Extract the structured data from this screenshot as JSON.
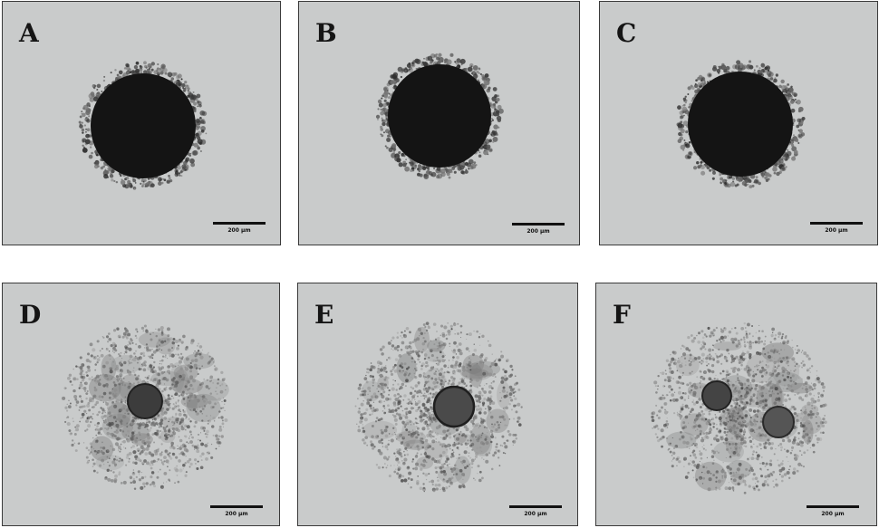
{
  "figure": {
    "panels": [
      {
        "label": "A",
        "scale_text": "200 μm",
        "type": "compact"
      },
      {
        "label": "B",
        "scale_text": "200 μm",
        "type": "compact"
      },
      {
        "label": "C",
        "scale_text": "200 μm",
        "type": "compact"
      },
      {
        "label": "D",
        "scale_text": "200 μm",
        "type": "dispersed"
      },
      {
        "label": "E",
        "scale_text": "200 μm",
        "type": "dispersed"
      },
      {
        "label": "F",
        "scale_text": "200 μm",
        "type": "dispersed"
      }
    ],
    "colors": {
      "background": "#c9cbcb",
      "dense_core": "#141414",
      "halo": "#4a4a4a",
      "dispersed": "#6e6e6e"
    }
  }
}
